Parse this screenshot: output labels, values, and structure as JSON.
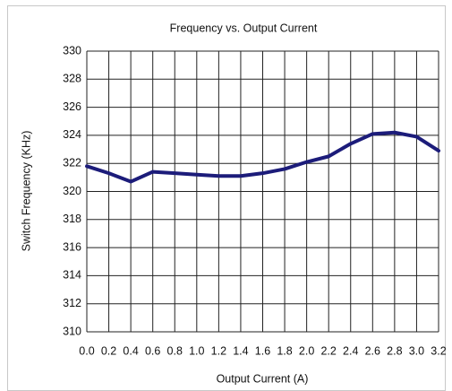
{
  "chart_data": {
    "type": "line",
    "title": "Frequency vs. Output Current",
    "xlabel": "Output Current (A)",
    "ylabel": "Switch Frequency (KHz)",
    "x": [
      0,
      0.2,
      0.4,
      0.6,
      0.8,
      1.0,
      1.2,
      1.4,
      1.6,
      1.8,
      2.0,
      2.2,
      2.4,
      2.6,
      2.8,
      3.0,
      3.2
    ],
    "values": [
      321.8,
      321.3,
      320.7,
      321.4,
      321.3,
      321.2,
      321.1,
      321.1,
      321.3,
      321.6,
      322.1,
      322.5,
      323.4,
      324.1,
      324.2,
      323.9,
      322.9
    ],
    "color": "#1c1c7a",
    "xlim": [
      0,
      3.2
    ],
    "xticks": [
      {
        "value": 0,
        "label": "0.0"
      },
      0.2,
      0.4,
      0.6,
      0.8,
      {
        "value": 1,
        "label": "1.0"
      },
      1.2,
      1.4,
      1.6,
      1.8,
      {
        "value": 2,
        "label": "2.0"
      },
      2.2,
      2.4,
      2.6,
      2.8,
      {
        "value": 3,
        "label": "3.0"
      },
      3.2
    ],
    "ylim": [
      310,
      330
    ],
    "yticks": [
      310,
      312,
      314,
      316,
      318,
      320,
      322,
      324,
      326,
      328,
      330
    ],
    "grid": true
  }
}
